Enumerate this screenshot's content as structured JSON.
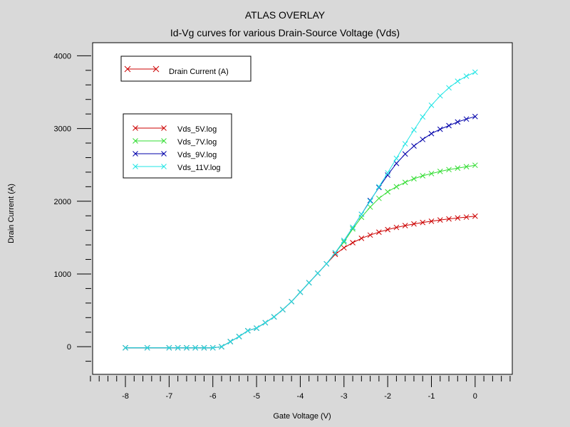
{
  "chart_data": {
    "type": "line",
    "title": "ATLAS OVERLAY",
    "subtitle": "Id-Vg curves for various Drain-Source Voltage (Vds)",
    "xlabel": "Gate Voltage (V)",
    "ylabel": "Drain Current (A)",
    "xlim": [
      -8.75,
      0.85
    ],
    "ylim": [
      -380,
      4180
    ],
    "x_ticks": [
      -8,
      -7,
      -6,
      -5,
      -4,
      -3,
      -2,
      -1,
      0
    ],
    "y_ticks": [
      0,
      1000,
      2000,
      3000,
      4000
    ],
    "grid": false,
    "legend_quantity": {
      "label": "Drain Current (A)",
      "color": "#cc0000",
      "marker": "x"
    },
    "legend_placement": "top-left",
    "series": [
      {
        "name": "Vds_5V.log",
        "color": "#cc0000",
        "marker": "x",
        "points": [
          [
            -8,
            -15
          ],
          [
            -7.5,
            -15
          ],
          [
            -7,
            -15
          ],
          [
            -6.8,
            -15
          ],
          [
            -6.6,
            -15
          ],
          [
            -6.4,
            -15
          ],
          [
            -6.2,
            -15
          ],
          [
            -6,
            -15
          ],
          [
            -5.8,
            0
          ],
          [
            -5.6,
            70
          ],
          [
            -5.4,
            140
          ],
          [
            -5.2,
            220
          ],
          [
            -5,
            255
          ],
          [
            -4.8,
            330
          ],
          [
            -4.6,
            410
          ],
          [
            -4.4,
            510
          ],
          [
            -4.2,
            620
          ],
          [
            -4,
            750
          ],
          [
            -3.8,
            880
          ],
          [
            -3.6,
            1010
          ],
          [
            -3.4,
            1140
          ],
          [
            -3.2,
            1270
          ],
          [
            -3,
            1360
          ],
          [
            -2.8,
            1430
          ],
          [
            -2.6,
            1490
          ],
          [
            -2.4,
            1535
          ],
          [
            -2.2,
            1575
          ],
          [
            -2,
            1610
          ],
          [
            -1.8,
            1640
          ],
          [
            -1.6,
            1665
          ],
          [
            -1.4,
            1688
          ],
          [
            -1.2,
            1708
          ],
          [
            -1,
            1725
          ],
          [
            -0.8,
            1742
          ],
          [
            -0.6,
            1757
          ],
          [
            -0.4,
            1770
          ],
          [
            -0.2,
            1782
          ],
          [
            0,
            1795
          ]
        ]
      },
      {
        "name": "Vds_7V.log",
        "color": "#33dd33",
        "marker": "x",
        "points": [
          [
            -8,
            -15
          ],
          [
            -7.5,
            -15
          ],
          [
            -7,
            -15
          ],
          [
            -6.8,
            -15
          ],
          [
            -6.6,
            -15
          ],
          [
            -6.4,
            -15
          ],
          [
            -6.2,
            -15
          ],
          [
            -6,
            -15
          ],
          [
            -5.8,
            0
          ],
          [
            -5.6,
            70
          ],
          [
            -5.4,
            140
          ],
          [
            -5.2,
            220
          ],
          [
            -5,
            255
          ],
          [
            -4.8,
            330
          ],
          [
            -4.6,
            410
          ],
          [
            -4.4,
            510
          ],
          [
            -4.2,
            620
          ],
          [
            -4,
            750
          ],
          [
            -3.8,
            880
          ],
          [
            -3.6,
            1010
          ],
          [
            -3.4,
            1140
          ],
          [
            -3.2,
            1290
          ],
          [
            -3,
            1440
          ],
          [
            -2.8,
            1620
          ],
          [
            -2.6,
            1780
          ],
          [
            -2.4,
            1920
          ],
          [
            -2.2,
            2040
          ],
          [
            -2,
            2130
          ],
          [
            -1.8,
            2200
          ],
          [
            -1.6,
            2260
          ],
          [
            -1.4,
            2310
          ],
          [
            -1.2,
            2350
          ],
          [
            -1,
            2380
          ],
          [
            -0.8,
            2410
          ],
          [
            -0.6,
            2435
          ],
          [
            -0.4,
            2455
          ],
          [
            -0.2,
            2475
          ],
          [
            0,
            2495
          ]
        ]
      },
      {
        "name": "Vds_9V.log",
        "color": "#0000aa",
        "marker": "x",
        "points": [
          [
            -8,
            -15
          ],
          [
            -7.5,
            -15
          ],
          [
            -7,
            -15
          ],
          [
            -6.8,
            -15
          ],
          [
            -6.6,
            -15
          ],
          [
            -6.4,
            -15
          ],
          [
            -6.2,
            -15
          ],
          [
            -6,
            -15
          ],
          [
            -5.8,
            0
          ],
          [
            -5.6,
            70
          ],
          [
            -5.4,
            140
          ],
          [
            -5.2,
            220
          ],
          [
            -5,
            255
          ],
          [
            -4.8,
            330
          ],
          [
            -4.6,
            410
          ],
          [
            -4.4,
            510
          ],
          [
            -4.2,
            620
          ],
          [
            -4,
            750
          ],
          [
            -3.8,
            880
          ],
          [
            -3.6,
            1010
          ],
          [
            -3.4,
            1140
          ],
          [
            -3.2,
            1290
          ],
          [
            -3,
            1460
          ],
          [
            -2.8,
            1640
          ],
          [
            -2.6,
            1820
          ],
          [
            -2.4,
            2010
          ],
          [
            -2.2,
            2190
          ],
          [
            -2,
            2360
          ],
          [
            -1.8,
            2520
          ],
          [
            -1.6,
            2650
          ],
          [
            -1.4,
            2760
          ],
          [
            -1.2,
            2850
          ],
          [
            -1,
            2930
          ],
          [
            -0.8,
            2990
          ],
          [
            -0.6,
            3040
          ],
          [
            -0.4,
            3090
          ],
          [
            -0.2,
            3130
          ],
          [
            0,
            3165
          ]
        ]
      },
      {
        "name": "Vds_11V.log",
        "color": "#22e5e5",
        "marker": "x",
        "points": [
          [
            -8,
            -15
          ],
          [
            -7.5,
            -15
          ],
          [
            -7,
            -15
          ],
          [
            -6.8,
            -15
          ],
          [
            -6.6,
            -15
          ],
          [
            -6.4,
            -15
          ],
          [
            -6.2,
            -15
          ],
          [
            -6,
            -15
          ],
          [
            -5.8,
            0
          ],
          [
            -5.6,
            70
          ],
          [
            -5.4,
            140
          ],
          [
            -5.2,
            220
          ],
          [
            -5,
            255
          ],
          [
            -4.8,
            330
          ],
          [
            -4.6,
            410
          ],
          [
            -4.4,
            510
          ],
          [
            -4.2,
            620
          ],
          [
            -4,
            750
          ],
          [
            -3.8,
            880
          ],
          [
            -3.6,
            1010
          ],
          [
            -3.4,
            1140
          ],
          [
            -3.2,
            1290
          ],
          [
            -3,
            1460
          ],
          [
            -2.8,
            1640
          ],
          [
            -2.6,
            1820
          ],
          [
            -2.4,
            2000
          ],
          [
            -2.2,
            2200
          ],
          [
            -2,
            2390
          ],
          [
            -1.8,
            2590
          ],
          [
            -1.6,
            2790
          ],
          [
            -1.4,
            2980
          ],
          [
            -1.2,
            3160
          ],
          [
            -1,
            3320
          ],
          [
            -0.8,
            3450
          ],
          [
            -0.6,
            3560
          ],
          [
            -0.4,
            3650
          ],
          [
            -0.2,
            3720
          ],
          [
            0,
            3775
          ]
        ]
      }
    ]
  }
}
